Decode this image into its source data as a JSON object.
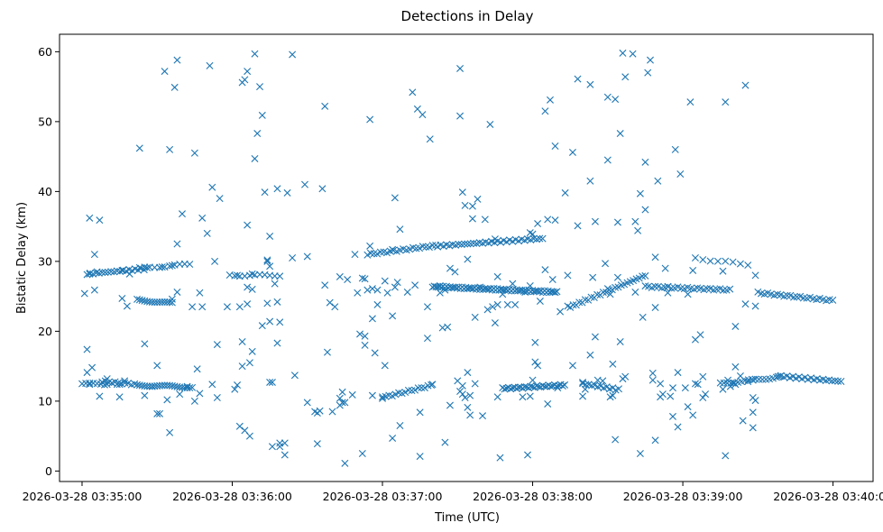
{
  "chart_data": {
    "type": "scatter",
    "title": "Detections in Delay",
    "xlabel": "Time (UTC)",
    "ylabel": "Bistatic Delay (km)",
    "marker": "x",
    "color": "#1f77b4",
    "grid": false,
    "legend": "none",
    "x_unit": "seconds after 2026-03-28 03:35:00 UTC",
    "xlim": [
      "2026-03-28 03:34:51",
      "2026-03-28 03:40:16"
    ],
    "ylim": [
      -1.5,
      62.5
    ],
    "x_ticks": [
      {
        "value": 0,
        "label": "2026-03-28 03:35:00"
      },
      {
        "value": 60,
        "label": "2026-03-28 03:36:00"
      },
      {
        "value": 120,
        "label": "2026-03-28 03:37:00"
      },
      {
        "value": 180,
        "label": "2026-03-28 03:38:00"
      },
      {
        "value": 240,
        "label": "2026-03-28 03:39:00"
      },
      {
        "value": 300,
        "label": "2026-03-28 03:40:00"
      }
    ],
    "y_ticks": [
      0,
      10,
      20,
      30,
      40,
      50,
      60
    ],
    "tracks": [
      {
        "t_start": 2,
        "t_end": 27,
        "y_start": 28.2,
        "y_end": 29.0,
        "step": 1.2
      },
      {
        "t_start": 23,
        "t_end": 43,
        "y_start": 29.0,
        "y_end": 29.6,
        "step": 2.0
      },
      {
        "t_start": 59,
        "t_end": 80,
        "y_start": 28.0,
        "y_end": 28.0,
        "step": 2.0
      },
      {
        "t_start": 114,
        "t_end": 142,
        "y_start": 31.0,
        "y_end": 32.3,
        "step": 1.3
      },
      {
        "t_start": 142,
        "t_end": 185,
        "y_start": 32.2,
        "y_end": 33.3,
        "step": 1.2
      },
      {
        "t_start": 140,
        "t_end": 190,
        "y_start": 26.4,
        "y_end": 25.6,
        "step": 0.7
      },
      {
        "t_start": 195,
        "t_end": 225,
        "y_start": 23.5,
        "y_end": 28.0,
        "step": 1.2
      },
      {
        "t_start": 225,
        "t_end": 260,
        "y_start": 26.4,
        "y_end": 25.9,
        "step": 1.3
      },
      {
        "t_start": 270,
        "t_end": 300,
        "y_start": 25.5,
        "y_end": 24.4,
        "step": 1.3
      },
      {
        "t_start": 22,
        "t_end": 36,
        "y_start": 24.5,
        "y_end": 24.0,
        "step": 1.0
      },
      {
        "t_start": 8,
        "t_end": 22,
        "y_start": 12.8,
        "y_end": 12.4,
        "step": 1.3
      },
      {
        "t_start": 22,
        "t_end": 44,
        "y_start": 12.3,
        "y_end": 12.0,
        "step": 1.0
      },
      {
        "t_start": 120,
        "t_end": 140,
        "y_start": 10.5,
        "y_end": 12.3,
        "step": 1.3
      },
      {
        "t_start": 168,
        "t_end": 193,
        "y_start": 11.8,
        "y_end": 12.3,
        "step": 0.8
      },
      {
        "t_start": 200,
        "t_end": 215,
        "y_start": 12.5,
        "y_end": 11.6,
        "step": 1.2
      },
      {
        "t_start": 255,
        "t_end": 280,
        "y_start": 12.5,
        "y_end": 13.5,
        "step": 1.4
      },
      {
        "t_start": 278,
        "t_end": 304,
        "y_start": 13.6,
        "y_end": 12.8,
        "step": 1.2
      },
      {
        "t_start": 245,
        "t_end": 268,
        "y_start": 30.4,
        "y_end": 29.5,
        "step": 3.0
      },
      {
        "t_start": 0,
        "t_end": 10,
        "y_start": 12.5,
        "y_end": 12.4,
        "step": 1.5
      }
    ],
    "points": [
      [
        1,
        25.4
      ],
      [
        2,
        14.1
      ],
      [
        2,
        17.4
      ],
      [
        3,
        36.2
      ],
      [
        3,
        28.2
      ],
      [
        3,
        12.4
      ],
      [
        4,
        14.8
      ],
      [
        5,
        25.9
      ],
      [
        5,
        31.0
      ],
      [
        6,
        28.5
      ],
      [
        7,
        35.9
      ],
      [
        7,
        10.7
      ],
      [
        10,
        12.4
      ],
      [
        10,
        13.2
      ],
      [
        12,
        12.6
      ],
      [
        14,
        12.4
      ],
      [
        15,
        10.6
      ],
      [
        15,
        12.4
      ],
      [
        16,
        24.7
      ],
      [
        16,
        28.7
      ],
      [
        17,
        12.9
      ],
      [
        18,
        23.6
      ],
      [
        19,
        28.2
      ],
      [
        23,
        46.2
      ],
      [
        25,
        18.2
      ],
      [
        25,
        10.8
      ],
      [
        28,
        12.1
      ],
      [
        30,
        8.2
      ],
      [
        30,
        15.1
      ],
      [
        31,
        8.2
      ],
      [
        32,
        29.2
      ],
      [
        33,
        57.2
      ],
      [
        34,
        10.2
      ],
      [
        35,
        46.0
      ],
      [
        35,
        5.5
      ],
      [
        36,
        24.6
      ],
      [
        36,
        29.4
      ],
      [
        37,
        54.9
      ],
      [
        38,
        58.8
      ],
      [
        38,
        32.5
      ],
      [
        38,
        25.6
      ],
      [
        39,
        11.0
      ],
      [
        40,
        36.8
      ],
      [
        42,
        12.1
      ],
      [
        44,
        23.5
      ],
      [
        45,
        10.0
      ],
      [
        45,
        45.5
      ],
      [
        46,
        14.6
      ],
      [
        47,
        25.5
      ],
      [
        47,
        11.1
      ],
      [
        48,
        36.2
      ],
      [
        48,
        23.5
      ],
      [
        50,
        34.0
      ],
      [
        51,
        58.0
      ],
      [
        52,
        40.6
      ],
      [
        52,
        12.4
      ],
      [
        53,
        30.0
      ],
      [
        54,
        18.1
      ],
      [
        54,
        10.5
      ],
      [
        55,
        39.0
      ],
      [
        58,
        23.5
      ],
      [
        61,
        11.7
      ],
      [
        62,
        12.3
      ],
      [
        62,
        28.0
      ],
      [
        63,
        6.4
      ],
      [
        63,
        23.5
      ],
      [
        64,
        18.5
      ],
      [
        64,
        15.0
      ],
      [
        64,
        55.6
      ],
      [
        65,
        56.0
      ],
      [
        65,
        5.8
      ],
      [
        66,
        23.9
      ],
      [
        66,
        26.3
      ],
      [
        66,
        35.2
      ],
      [
        66,
        57.2
      ],
      [
        67,
        15.5
      ],
      [
        67,
        5.0
      ],
      [
        68,
        26.0
      ],
      [
        68,
        17.1
      ],
      [
        68,
        28.2
      ],
      [
        69,
        59.7
      ],
      [
        69,
        44.7
      ],
      [
        70,
        48.3
      ],
      [
        71,
        55.0
      ],
      [
        72,
        50.9
      ],
      [
        72,
        20.8
      ],
      [
        73,
        39.9
      ],
      [
        74,
        24.0
      ],
      [
        74,
        30.0
      ],
      [
        74,
        30.2
      ],
      [
        75,
        33.6
      ],
      [
        75,
        12.7
      ],
      [
        75,
        21.4
      ],
      [
        75,
        29.3
      ],
      [
        76,
        12.7
      ],
      [
        76,
        3.5
      ],
      [
        77,
        26.8
      ],
      [
        78,
        24.2
      ],
      [
        78,
        40.4
      ],
      [
        78,
        18.3
      ],
      [
        79,
        21.3
      ],
      [
        79,
        4.0
      ],
      [
        79,
        3.5
      ],
      [
        81,
        4.0
      ],
      [
        81,
        2.3
      ],
      [
        82,
        39.8
      ],
      [
        84,
        59.6
      ],
      [
        84,
        30.5
      ],
      [
        85,
        13.7
      ],
      [
        89,
        41.0
      ],
      [
        90,
        9.8
      ],
      [
        90,
        30.7
      ],
      [
        93,
        8.5
      ],
      [
        94,
        8.3
      ],
      [
        94,
        3.9
      ],
      [
        95,
        8.6
      ],
      [
        96,
        40.4
      ],
      [
        97,
        52.2
      ],
      [
        97,
        26.6
      ],
      [
        98,
        17.0
      ],
      [
        99,
        24.1
      ],
      [
        100,
        8.5
      ],
      [
        101,
        23.5
      ],
      [
        103,
        9.4
      ],
      [
        103,
        10.4
      ],
      [
        103,
        27.8
      ],
      [
        104,
        11.3
      ],
      [
        104,
        9.8
      ],
      [
        105,
        1.1
      ],
      [
        105,
        9.8
      ],
      [
        106,
        27.4
      ],
      [
        108,
        10.9
      ],
      [
        109,
        31.0
      ],
      [
        110,
        25.5
      ],
      [
        111,
        19.6
      ],
      [
        112,
        27.6
      ],
      [
        112,
        2.5
      ],
      [
        113,
        18.0
      ],
      [
        113,
        19.3
      ],
      [
        113,
        27.5
      ],
      [
        114,
        25.9
      ],
      [
        115,
        32.2
      ],
      [
        115,
        50.3
      ],
      [
        116,
        26.1
      ],
      [
        116,
        21.8
      ],
      [
        116,
        10.8
      ],
      [
        117,
        16.9
      ],
      [
        118,
        23.8
      ],
      [
        118,
        25.9
      ],
      [
        120,
        10.6
      ],
      [
        121,
        27.2
      ],
      [
        121,
        15.1
      ],
      [
        122,
        25.5
      ],
      [
        124,
        22.2
      ],
      [
        124,
        4.7
      ],
      [
        124,
        31.7
      ],
      [
        125,
        26.3
      ],
      [
        125,
        39.1
      ],
      [
        126,
        27.0
      ],
      [
        127,
        34.6
      ],
      [
        127,
        6.5
      ],
      [
        130,
        25.6
      ],
      [
        132,
        54.2
      ],
      [
        133,
        26.6
      ],
      [
        134,
        51.8
      ],
      [
        135,
        8.4
      ],
      [
        135,
        2.1
      ],
      [
        136,
        51.0
      ],
      [
        138,
        19.0
      ],
      [
        138,
        23.5
      ],
      [
        139,
        47.5
      ],
      [
        140,
        12.4
      ],
      [
        143,
        26.5
      ],
      [
        143,
        25.5
      ],
      [
        144,
        20.5
      ],
      [
        145,
        25.9
      ],
      [
        145,
        4.1
      ],
      [
        146,
        20.6
      ],
      [
        147,
        9.4
      ],
      [
        147,
        29.0
      ],
      [
        149,
        28.5
      ],
      [
        150,
        12.9
      ],
      [
        151,
        50.8
      ],
      [
        151,
        57.6
      ],
      [
        151,
        11.4
      ],
      [
        152,
        12.2
      ],
      [
        152,
        11.0
      ],
      [
        152,
        39.9
      ],
      [
        153,
        38.0
      ],
      [
        153,
        10.5
      ],
      [
        154,
        30.3
      ],
      [
        154,
        14.1
      ],
      [
        154,
        9.1
      ],
      [
        155,
        10.8
      ],
      [
        155,
        8.0
      ],
      [
        156,
        36.1
      ],
      [
        156,
        37.9
      ],
      [
        157,
        12.5
      ],
      [
        157,
        22.0
      ],
      [
        158,
        38.9
      ],
      [
        159,
        26.3
      ],
      [
        160,
        7.9
      ],
      [
        161,
        36.0
      ],
      [
        162,
        23.1
      ],
      [
        163,
        49.6
      ],
      [
        164,
        23.5
      ],
      [
        165,
        33.2
      ],
      [
        165,
        21.2
      ],
      [
        166,
        27.8
      ],
      [
        166,
        10.6
      ],
      [
        166,
        23.8
      ],
      [
        167,
        1.9
      ],
      [
        168,
        25.3
      ],
      [
        170,
        23.8
      ],
      [
        172,
        26.8
      ],
      [
        173,
        23.8
      ],
      [
        176,
        10.6
      ],
      [
        177,
        25.6
      ],
      [
        178,
        2.3
      ],
      [
        179,
        26.5
      ],
      [
        179,
        10.7
      ],
      [
        179,
        34.1
      ],
      [
        180,
        13.0
      ],
      [
        180,
        33.9
      ],
      [
        181,
        18.4
      ],
      [
        181,
        15.6
      ],
      [
        182,
        15.1
      ],
      [
        182,
        35.4
      ],
      [
        183,
        24.3
      ],
      [
        185,
        28.8
      ],
      [
        185,
        51.5
      ],
      [
        186,
        9.6
      ],
      [
        186,
        36.0
      ],
      [
        187,
        53.1
      ],
      [
        188,
        27.4
      ],
      [
        189,
        35.9
      ],
      [
        189,
        46.5
      ],
      [
        190,
        11.9
      ],
      [
        191,
        22.8
      ],
      [
        193,
        39.8
      ],
      [
        194,
        28.0
      ],
      [
        194,
        23.6
      ],
      [
        196,
        15.1
      ],
      [
        196,
        45.6
      ],
      [
        198,
        56.1
      ],
      [
        198,
        35.1
      ],
      [
        200,
        12.7
      ],
      [
        200,
        10.7
      ],
      [
        201,
        11.7
      ],
      [
        203,
        41.5
      ],
      [
        203,
        16.6
      ],
      [
        203,
        55.3
      ],
      [
        204,
        27.7
      ],
      [
        205,
        19.2
      ],
      [
        205,
        35.7
      ],
      [
        206,
        13.0
      ],
      [
        208,
        12.9
      ],
      [
        209,
        29.7
      ],
      [
        210,
        53.5
      ],
      [
        210,
        44.5
      ],
      [
        210,
        26.1
      ],
      [
        211,
        25.3
      ],
      [
        211,
        10.6
      ],
      [
        212,
        15.3
      ],
      [
        212,
        10.8
      ],
      [
        213,
        53.2
      ],
      [
        213,
        4.5
      ],
      [
        214,
        35.6
      ],
      [
        214,
        27.7
      ],
      [
        215,
        48.3
      ],
      [
        215,
        18.5
      ],
      [
        216,
        59.8
      ],
      [
        216,
        13.2
      ],
      [
        217,
        56.4
      ],
      [
        217,
        13.5
      ],
      [
        220,
        59.7
      ],
      [
        221,
        25.6
      ],
      [
        221,
        35.7
      ],
      [
        222,
        34.4
      ],
      [
        223,
        39.7
      ],
      [
        223,
        2.5
      ],
      [
        224,
        22.0
      ],
      [
        225,
        37.4
      ],
      [
        225,
        44.2
      ],
      [
        226,
        57.0
      ],
      [
        227,
        58.8
      ],
      [
        228,
        13.0
      ],
      [
        228,
        14.0
      ],
      [
        229,
        4.4
      ],
      [
        229,
        23.4
      ],
      [
        229,
        30.6
      ],
      [
        230,
        41.5
      ],
      [
        231,
        12.5
      ],
      [
        231,
        10.6
      ],
      [
        232,
        11.0
      ],
      [
        233,
        29.0
      ],
      [
        234,
        26.4
      ],
      [
        234,
        25.5
      ],
      [
        235,
        10.7
      ],
      [
        236,
        7.8
      ],
      [
        236,
        11.9
      ],
      [
        237,
        46.0
      ],
      [
        238,
        14.1
      ],
      [
        238,
        6.3
      ],
      [
        239,
        42.5
      ],
      [
        241,
        11.9
      ],
      [
        242,
        9.2
      ],
      [
        242,
        25.3
      ],
      [
        243,
        52.8
      ],
      [
        244,
        28.7
      ],
      [
        244,
        8.0
      ],
      [
        245,
        18.8
      ],
      [
        245,
        12.5
      ],
      [
        246,
        12.4
      ],
      [
        247,
        19.5
      ],
      [
        248,
        10.5
      ],
      [
        248,
        13.5
      ],
      [
        249,
        11.0
      ],
      [
        256,
        28.6
      ],
      [
        256,
        11.7
      ],
      [
        257,
        2.2
      ],
      [
        257,
        52.8
      ],
      [
        258,
        13.0
      ],
      [
        259,
        12.1
      ],
      [
        260,
        12.6
      ],
      [
        261,
        14.9
      ],
      [
        261,
        20.7
      ],
      [
        261,
        12.4
      ],
      [
        263,
        13.6
      ],
      [
        264,
        7.2
      ],
      [
        265,
        55.2
      ],
      [
        265,
        23.9
      ],
      [
        266,
        12.8
      ],
      [
        268,
        8.4
      ],
      [
        268,
        10.5
      ],
      [
        268,
        6.2
      ],
      [
        268,
        13.0
      ],
      [
        269,
        23.6
      ],
      [
        269,
        10.1
      ],
      [
        269,
        28.0
      ]
    ]
  }
}
